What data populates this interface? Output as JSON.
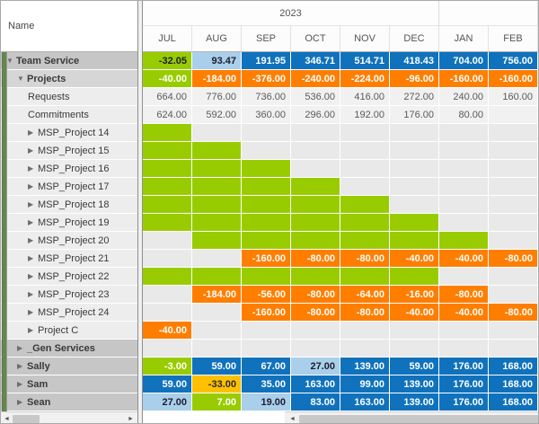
{
  "header": {
    "name_column_label": "Name",
    "year_groups": [
      {
        "label": "2023",
        "span": 6
      },
      {
        "label": "",
        "span": 2
      }
    ],
    "months": [
      "JUL",
      "AUG",
      "SEP",
      "OCT",
      "NOV",
      "DEC",
      "JAN",
      "FEB"
    ]
  },
  "icons": {
    "expanded": "▼",
    "collapsed": "▶",
    "scroll_left": "◄",
    "scroll_right": "►"
  },
  "colors": {
    "surplus_green": "#99cc00",
    "over_blue": "#1072bc",
    "light_blue": "#a9cfea",
    "deficit_orange": "#ff7e00",
    "warn_amber": "#ffc000",
    "left_strip_green": "#5e8c46",
    "summary_row_gray": "#c6c6c6"
  },
  "rows": [
    {
      "name": "Team Service",
      "level": 0,
      "expander": "expanded",
      "bold": true,
      "shade": "dark",
      "cells": [
        {
          "v": "-32.05",
          "c": "gd"
        },
        {
          "v": "93.47",
          "c": "lb"
        },
        {
          "v": "191.95",
          "c": "b"
        },
        {
          "v": "346.71",
          "c": "b"
        },
        {
          "v": "514.71",
          "c": "b"
        },
        {
          "v": "418.43",
          "c": "b"
        },
        {
          "v": "704.00",
          "c": "b"
        },
        {
          "v": "756.00",
          "c": "b"
        }
      ]
    },
    {
      "name": "Projects",
      "level": 1,
      "expander": "expanded",
      "bold": true,
      "shade": "med",
      "cells": [
        {
          "v": "-40.00",
          "c": "g"
        },
        {
          "v": "-184.00",
          "c": "o"
        },
        {
          "v": "-376.00",
          "c": "o"
        },
        {
          "v": "-240.00",
          "c": "o"
        },
        {
          "v": "-224.00",
          "c": "o"
        },
        {
          "v": "-96.00",
          "c": "o"
        },
        {
          "v": "-160.00",
          "c": "o"
        },
        {
          "v": "-160.00",
          "c": "o"
        }
      ]
    },
    {
      "name": "Requests",
      "level": 2,
      "expander": "none",
      "bold": false,
      "shade": "light",
      "cells": [
        {
          "v": "664.00",
          "c": "p"
        },
        {
          "v": "776.00",
          "c": "p"
        },
        {
          "v": "736.00",
          "c": "p"
        },
        {
          "v": "536.00",
          "c": "p"
        },
        {
          "v": "416.00",
          "c": "p"
        },
        {
          "v": "272.00",
          "c": "p"
        },
        {
          "v": "240.00",
          "c": "p"
        },
        {
          "v": "160.00",
          "c": "p"
        }
      ]
    },
    {
      "name": "Commitments",
      "level": 2,
      "expander": "none",
      "bold": false,
      "shade": "light",
      "cells": [
        {
          "v": "624.00",
          "c": "p"
        },
        {
          "v": "592.00",
          "c": "p"
        },
        {
          "v": "360.00",
          "c": "p"
        },
        {
          "v": "296.00",
          "c": "p"
        },
        {
          "v": "192.00",
          "c": "p"
        },
        {
          "v": "176.00",
          "c": "p"
        },
        {
          "v": "80.00",
          "c": "p"
        },
        {
          "v": "",
          "c": "p"
        }
      ]
    },
    {
      "name": "MSP_Project 14",
      "level": 2,
      "expander": "collapsed",
      "bold": false,
      "shade": "light",
      "cells": [
        {
          "v": "",
          "c": "g"
        },
        {
          "v": "",
          "c": "e"
        },
        {
          "v": "",
          "c": "e"
        },
        {
          "v": "",
          "c": "e"
        },
        {
          "v": "",
          "c": "e"
        },
        {
          "v": "",
          "c": "e"
        },
        {
          "v": "",
          "c": "e"
        },
        {
          "v": "",
          "c": "e"
        }
      ]
    },
    {
      "name": "MSP_Project 15",
      "level": 2,
      "expander": "collapsed",
      "bold": false,
      "shade": "light",
      "cells": [
        {
          "v": "",
          "c": "g"
        },
        {
          "v": "",
          "c": "g"
        },
        {
          "v": "",
          "c": "e"
        },
        {
          "v": "",
          "c": "e"
        },
        {
          "v": "",
          "c": "e"
        },
        {
          "v": "",
          "c": "e"
        },
        {
          "v": "",
          "c": "e"
        },
        {
          "v": "",
          "c": "e"
        }
      ]
    },
    {
      "name": "MSP_Project 16",
      "level": 2,
      "expander": "collapsed",
      "bold": false,
      "shade": "light",
      "cells": [
        {
          "v": "",
          "c": "g"
        },
        {
          "v": "",
          "c": "g"
        },
        {
          "v": "",
          "c": "g"
        },
        {
          "v": "",
          "c": "e"
        },
        {
          "v": "",
          "c": "e"
        },
        {
          "v": "",
          "c": "e"
        },
        {
          "v": "",
          "c": "e"
        },
        {
          "v": "",
          "c": "e"
        }
      ]
    },
    {
      "name": "MSP_Project 17",
      "level": 2,
      "expander": "collapsed",
      "bold": false,
      "shade": "light",
      "cells": [
        {
          "v": "",
          "c": "g"
        },
        {
          "v": "",
          "c": "g"
        },
        {
          "v": "",
          "c": "g"
        },
        {
          "v": "",
          "c": "g"
        },
        {
          "v": "",
          "c": "e"
        },
        {
          "v": "",
          "c": "e"
        },
        {
          "v": "",
          "c": "e"
        },
        {
          "v": "",
          "c": "e"
        }
      ]
    },
    {
      "name": "MSP_Project 18",
      "level": 2,
      "expander": "collapsed",
      "bold": false,
      "shade": "light",
      "cells": [
        {
          "v": "",
          "c": "g"
        },
        {
          "v": "",
          "c": "g"
        },
        {
          "v": "",
          "c": "g"
        },
        {
          "v": "",
          "c": "g"
        },
        {
          "v": "",
          "c": "g"
        },
        {
          "v": "",
          "c": "e"
        },
        {
          "v": "",
          "c": "e"
        },
        {
          "v": "",
          "c": "e"
        }
      ]
    },
    {
      "name": "MSP_Project 19",
      "level": 2,
      "expander": "collapsed",
      "bold": false,
      "shade": "light",
      "cells": [
        {
          "v": "",
          "c": "g"
        },
        {
          "v": "",
          "c": "g"
        },
        {
          "v": "",
          "c": "g"
        },
        {
          "v": "",
          "c": "g"
        },
        {
          "v": "",
          "c": "g"
        },
        {
          "v": "",
          "c": "g"
        },
        {
          "v": "",
          "c": "e"
        },
        {
          "v": "",
          "c": "e"
        }
      ]
    },
    {
      "name": "MSP_Project 20",
      "level": 2,
      "expander": "collapsed",
      "bold": false,
      "shade": "light",
      "cells": [
        {
          "v": "",
          "c": "e"
        },
        {
          "v": "",
          "c": "g"
        },
        {
          "v": "",
          "c": "g"
        },
        {
          "v": "",
          "c": "g"
        },
        {
          "v": "",
          "c": "g"
        },
        {
          "v": "",
          "c": "g"
        },
        {
          "v": "",
          "c": "g"
        },
        {
          "v": "",
          "c": "e"
        }
      ]
    },
    {
      "name": "MSP_Project 21",
      "level": 2,
      "expander": "collapsed",
      "bold": false,
      "shade": "light",
      "cells": [
        {
          "v": "",
          "c": "e"
        },
        {
          "v": "",
          "c": "e"
        },
        {
          "v": "-160.00",
          "c": "o"
        },
        {
          "v": "-80.00",
          "c": "o"
        },
        {
          "v": "-80.00",
          "c": "o"
        },
        {
          "v": "-40.00",
          "c": "o"
        },
        {
          "v": "-40.00",
          "c": "o"
        },
        {
          "v": "-80.00",
          "c": "o"
        }
      ]
    },
    {
      "name": "MSP_Project 22",
      "level": 2,
      "expander": "collapsed",
      "bold": false,
      "shade": "light",
      "cells": [
        {
          "v": "",
          "c": "g"
        },
        {
          "v": "",
          "c": "g"
        },
        {
          "v": "",
          "c": "g"
        },
        {
          "v": "",
          "c": "g"
        },
        {
          "v": "",
          "c": "g"
        },
        {
          "v": "",
          "c": "g"
        },
        {
          "v": "",
          "c": "e"
        },
        {
          "v": "",
          "c": "e"
        }
      ]
    },
    {
      "name": "MSP_Project 23",
      "level": 2,
      "expander": "collapsed",
      "bold": false,
      "shade": "light",
      "cells": [
        {
          "v": "",
          "c": "e"
        },
        {
          "v": "-184.00",
          "c": "o"
        },
        {
          "v": "-56.00",
          "c": "o"
        },
        {
          "v": "-80.00",
          "c": "o"
        },
        {
          "v": "-64.00",
          "c": "o"
        },
        {
          "v": "-16.00",
          "c": "o"
        },
        {
          "v": "-80.00",
          "c": "o"
        },
        {
          "v": "",
          "c": "e"
        }
      ]
    },
    {
      "name": "MSP_Project 24",
      "level": 2,
      "expander": "collapsed",
      "bold": false,
      "shade": "light",
      "cells": [
        {
          "v": "",
          "c": "e"
        },
        {
          "v": "",
          "c": "e"
        },
        {
          "v": "-160.00",
          "c": "o"
        },
        {
          "v": "-80.00",
          "c": "o"
        },
        {
          "v": "-80.00",
          "c": "o"
        },
        {
          "v": "-40.00",
          "c": "o"
        },
        {
          "v": "-40.00",
          "c": "o"
        },
        {
          "v": "-80.00",
          "c": "o"
        }
      ]
    },
    {
      "name": "Project C",
      "level": 2,
      "expander": "collapsed",
      "bold": false,
      "shade": "light",
      "cells": [
        {
          "v": "-40.00",
          "c": "o"
        },
        {
          "v": "",
          "c": "e"
        },
        {
          "v": "",
          "c": "e"
        },
        {
          "v": "",
          "c": "e"
        },
        {
          "v": "",
          "c": "e"
        },
        {
          "v": "",
          "c": "e"
        },
        {
          "v": "",
          "c": "e"
        },
        {
          "v": "",
          "c": "e"
        }
      ]
    },
    {
      "name": "_Gen Services",
      "level": 1,
      "expander": "collapsed",
      "bold": true,
      "shade": "dark",
      "cells": [
        {
          "v": "",
          "c": "e"
        },
        {
          "v": "",
          "c": "e"
        },
        {
          "v": "",
          "c": "e"
        },
        {
          "v": "",
          "c": "e"
        },
        {
          "v": "",
          "c": "e"
        },
        {
          "v": "",
          "c": "e"
        },
        {
          "v": "",
          "c": "e"
        },
        {
          "v": "",
          "c": "e"
        }
      ]
    },
    {
      "name": "Sally",
      "level": 1,
      "expander": "collapsed",
      "bold": true,
      "shade": "dark",
      "cells": [
        {
          "v": "-3.00",
          "c": "g"
        },
        {
          "v": "59.00",
          "c": "b"
        },
        {
          "v": "67.00",
          "c": "b"
        },
        {
          "v": "27.00",
          "c": "lb"
        },
        {
          "v": "139.00",
          "c": "b"
        },
        {
          "v": "59.00",
          "c": "b"
        },
        {
          "v": "176.00",
          "c": "b"
        },
        {
          "v": "168.00",
          "c": "b"
        }
      ]
    },
    {
      "name": "Sam",
      "level": 1,
      "expander": "collapsed",
      "bold": true,
      "shade": "dark",
      "cells": [
        {
          "v": "59.00",
          "c": "b"
        },
        {
          "v": "-33.00",
          "c": "a"
        },
        {
          "v": "35.00",
          "c": "b"
        },
        {
          "v": "163.00",
          "c": "b"
        },
        {
          "v": "99.00",
          "c": "b"
        },
        {
          "v": "139.00",
          "c": "b"
        },
        {
          "v": "176.00",
          "c": "b"
        },
        {
          "v": "168.00",
          "c": "b"
        }
      ]
    },
    {
      "name": "Sean",
      "level": 1,
      "expander": "collapsed",
      "bold": true,
      "shade": "dark",
      "cells": [
        {
          "v": "27.00",
          "c": "lb"
        },
        {
          "v": "7.00",
          "c": "g"
        },
        {
          "v": "19.00",
          "c": "lb"
        },
        {
          "v": "83.00",
          "c": "b"
        },
        {
          "v": "163.00",
          "c": "b"
        },
        {
          "v": "139.00",
          "c": "b"
        },
        {
          "v": "176.00",
          "c": "b"
        },
        {
          "v": "168.00",
          "c": "b"
        }
      ]
    }
  ]
}
